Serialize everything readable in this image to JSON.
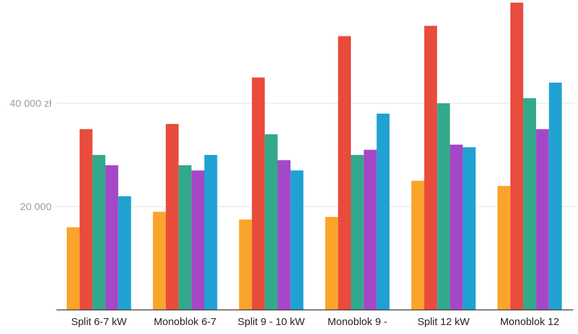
{
  "chart_data": {
    "type": "bar",
    "title": "",
    "xlabel": "",
    "ylabel": "",
    "ylim": [
      0,
      60000
    ],
    "grid": true,
    "legend": "none",
    "categories": [
      "Split 6-7 kW",
      "Monoblok 6-7",
      "Split 9 - 10 kW",
      "Monoblok 9 -",
      "Split 12 kW",
      "Monoblok 12"
    ],
    "y_ticks": [
      {
        "value": 20000,
        "label": "20 000"
      },
      {
        "value": 40000,
        "label": "40 000 zł"
      }
    ],
    "series": [
      {
        "color": "#FBA42C",
        "values": [
          16000,
          19000,
          17500,
          18000,
          25000,
          24000
        ]
      },
      {
        "color": "#E94B3C",
        "values": [
          35000,
          36000,
          45000,
          53000,
          55000,
          59500
        ]
      },
      {
        "color": "#33A98B",
        "values": [
          30000,
          28000,
          34000,
          30000,
          40000,
          41000
        ]
      },
      {
        "color": "#A448C7",
        "values": [
          28000,
          27000,
          29000,
          31000,
          32000,
          35000
        ]
      },
      {
        "color": "#1FA2D2",
        "values": [
          22000,
          30000,
          27000,
          38000,
          31500,
          44000
        ]
      }
    ]
  }
}
